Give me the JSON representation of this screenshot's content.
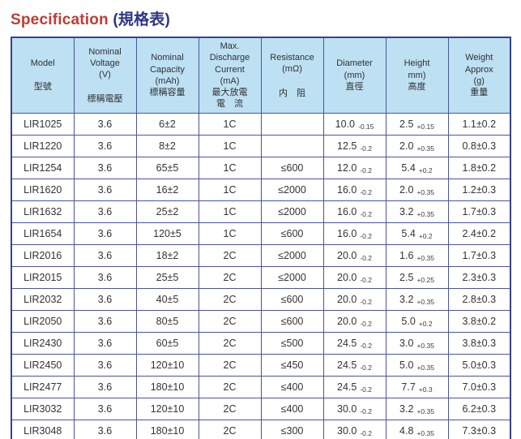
{
  "title": {
    "en": "Specification",
    "zh": "(規格表)"
  },
  "colors": {
    "title_en": "#c23b33",
    "title_zh": "#2d3582",
    "header_bg": "#bee0f3",
    "border": "#4a549d",
    "outer_border": "#39438b",
    "cell_text": "#333333"
  },
  "table": {
    "columns": [
      {
        "key": "model",
        "en_lines": [
          "Model"
        ],
        "zh_lines": [
          "型號"
        ],
        "gap": true
      },
      {
        "key": "voltage",
        "en_lines": [
          "Nominal",
          "Voltage",
          "(V)"
        ],
        "zh_lines": [
          "標稱電壓"
        ],
        "gap": true
      },
      {
        "key": "capacity",
        "en_lines": [
          "Nominal",
          "Capacity",
          "(mAh)"
        ],
        "zh_lines": [
          "標稱容量"
        ],
        "gap": false
      },
      {
        "key": "discharge",
        "en_lines": [
          "Max.",
          "Discharge",
          "Current",
          "(mA)"
        ],
        "zh_lines": [
          "最大放電",
          "電　流"
        ],
        "gap": false
      },
      {
        "key": "resistance",
        "en_lines": [
          "Resistance",
          "(mΩ)"
        ],
        "zh_lines": [
          "内　阻"
        ],
        "gap": true
      },
      {
        "key": "diameter",
        "en_lines": [
          "Diameter",
          "(mm)"
        ],
        "zh_lines": [
          "直徑"
        ],
        "gap": false
      },
      {
        "key": "height",
        "en_lines": [
          "Height",
          "mm)"
        ],
        "zh_lines": [
          "高度"
        ],
        "gap": false
      },
      {
        "key": "weight",
        "en_lines": [
          "Weight",
          "Approx",
          "(g)"
        ],
        "zh_lines": [
          "重量"
        ],
        "gap": false
      }
    ],
    "rows": [
      {
        "model": "LIR1025",
        "voltage": "3.6",
        "capacity": "6±2",
        "discharge": "1C",
        "resistance": "",
        "diameter": "10.0",
        "diameter_tol": "-0.15",
        "height": "2.5",
        "height_tol": "+0.15",
        "weight": "1.1±0.2"
      },
      {
        "model": "LIR1220",
        "voltage": "3.6",
        "capacity": "8±2",
        "discharge": "1C",
        "resistance": "",
        "diameter": "12.5",
        "diameter_tol": "-0.2",
        "height": "2.0",
        "height_tol": "+0.35",
        "weight": "0.8±0.3"
      },
      {
        "model": "LIR1254",
        "voltage": "3.6",
        "capacity": "65±5",
        "discharge": "1C",
        "resistance": "≤600",
        "diameter": "12.0",
        "diameter_tol": "-0.2",
        "height": "5.4",
        "height_tol": "+0.2",
        "weight": "1.8±0.2"
      },
      {
        "model": "LIR1620",
        "voltage": "3.6",
        "capacity": "16±2",
        "discharge": "1C",
        "resistance": "≤2000",
        "diameter": "16.0",
        "diameter_tol": "-0.2",
        "height": "2.0",
        "height_tol": "+0.35",
        "weight": "1.2±0.3"
      },
      {
        "model": "LIR1632",
        "voltage": "3.6",
        "capacity": "25±2",
        "discharge": "1C",
        "resistance": "≤2000",
        "diameter": "16.0",
        "diameter_tol": "-0.2",
        "height": "3.2",
        "height_tol": "+0.35",
        "weight": "1.7±0.3"
      },
      {
        "model": "LIR1654",
        "voltage": "3.6",
        "capacity": "120±5",
        "discharge": "1C",
        "resistance": "≤600",
        "diameter": "16.0",
        "diameter_tol": "-0.2",
        "height": "5.4",
        "height_tol": "+0.2",
        "weight": "2.4±0.2"
      },
      {
        "model": "LIR2016",
        "voltage": "3.6",
        "capacity": "18±2",
        "discharge": "2C",
        "resistance": "≤2000",
        "diameter": "20.0",
        "diameter_tol": "-0.2",
        "height": "1.6",
        "height_tol": "+0.35",
        "weight": "1.7±0.3"
      },
      {
        "model": "LIR2015",
        "voltage": "3.6",
        "capacity": "25±5",
        "discharge": "2C",
        "resistance": "≤2000",
        "diameter": "20.0",
        "diameter_tol": "-0.2",
        "height": "2.5",
        "height_tol": "+0.25",
        "weight": "2.3±0.3"
      },
      {
        "model": "LIR2032",
        "voltage": "3.6",
        "capacity": "40±5",
        "discharge": "2C",
        "resistance": "≤600",
        "diameter": "20.0",
        "diameter_tol": "-0.2",
        "height": "3.2",
        "height_tol": "+0.35",
        "weight": "2.8±0.3"
      },
      {
        "model": "LIR2050",
        "voltage": "3.6",
        "capacity": "80±5",
        "discharge": "2C",
        "resistance": "≤600",
        "diameter": "20.0",
        "diameter_tol": "-0.2",
        "height": "5.0",
        "height_tol": "+0.2",
        "weight": "3.8±0.2"
      },
      {
        "model": "LIR2430",
        "voltage": "3.6",
        "capacity": "60±5",
        "discharge": "2C",
        "resistance": "≤500",
        "diameter": "24.5",
        "diameter_tol": "-0.2",
        "height": "3.0",
        "height_tol": "+0.35",
        "weight": "3.8±0.3"
      },
      {
        "model": "LIR2450",
        "voltage": "3.6",
        "capacity": "120±10",
        "discharge": "2C",
        "resistance": "≤450",
        "diameter": "24.5",
        "diameter_tol": "-0.2",
        "height": "5.0",
        "height_tol": "+0.35",
        "weight": "5.0±0.3"
      },
      {
        "model": "LIR2477",
        "voltage": "3.6",
        "capacity": "180±10",
        "discharge": "2C",
        "resistance": "≤400",
        "diameter": "24.5",
        "diameter_tol": "-0.2",
        "height": "7.7",
        "height_tol": "+0.3",
        "weight": "7.0±0.3"
      },
      {
        "model": "LIR3032",
        "voltage": "3.6",
        "capacity": "120±10",
        "discharge": "2C",
        "resistance": "≤400",
        "diameter": "30.0",
        "diameter_tol": "-0.2",
        "height": "3.2",
        "height_tol": "+0.35",
        "weight": "6.2±0.3"
      },
      {
        "model": "LIR3048",
        "voltage": "3.6",
        "capacity": "180±10",
        "discharge": "2C",
        "resistance": "≤300",
        "diameter": "30.0",
        "diameter_tol": "-0.2",
        "height": "4.8",
        "height_tol": "+0.35",
        "weight": "7.3±0.3"
      }
    ]
  }
}
